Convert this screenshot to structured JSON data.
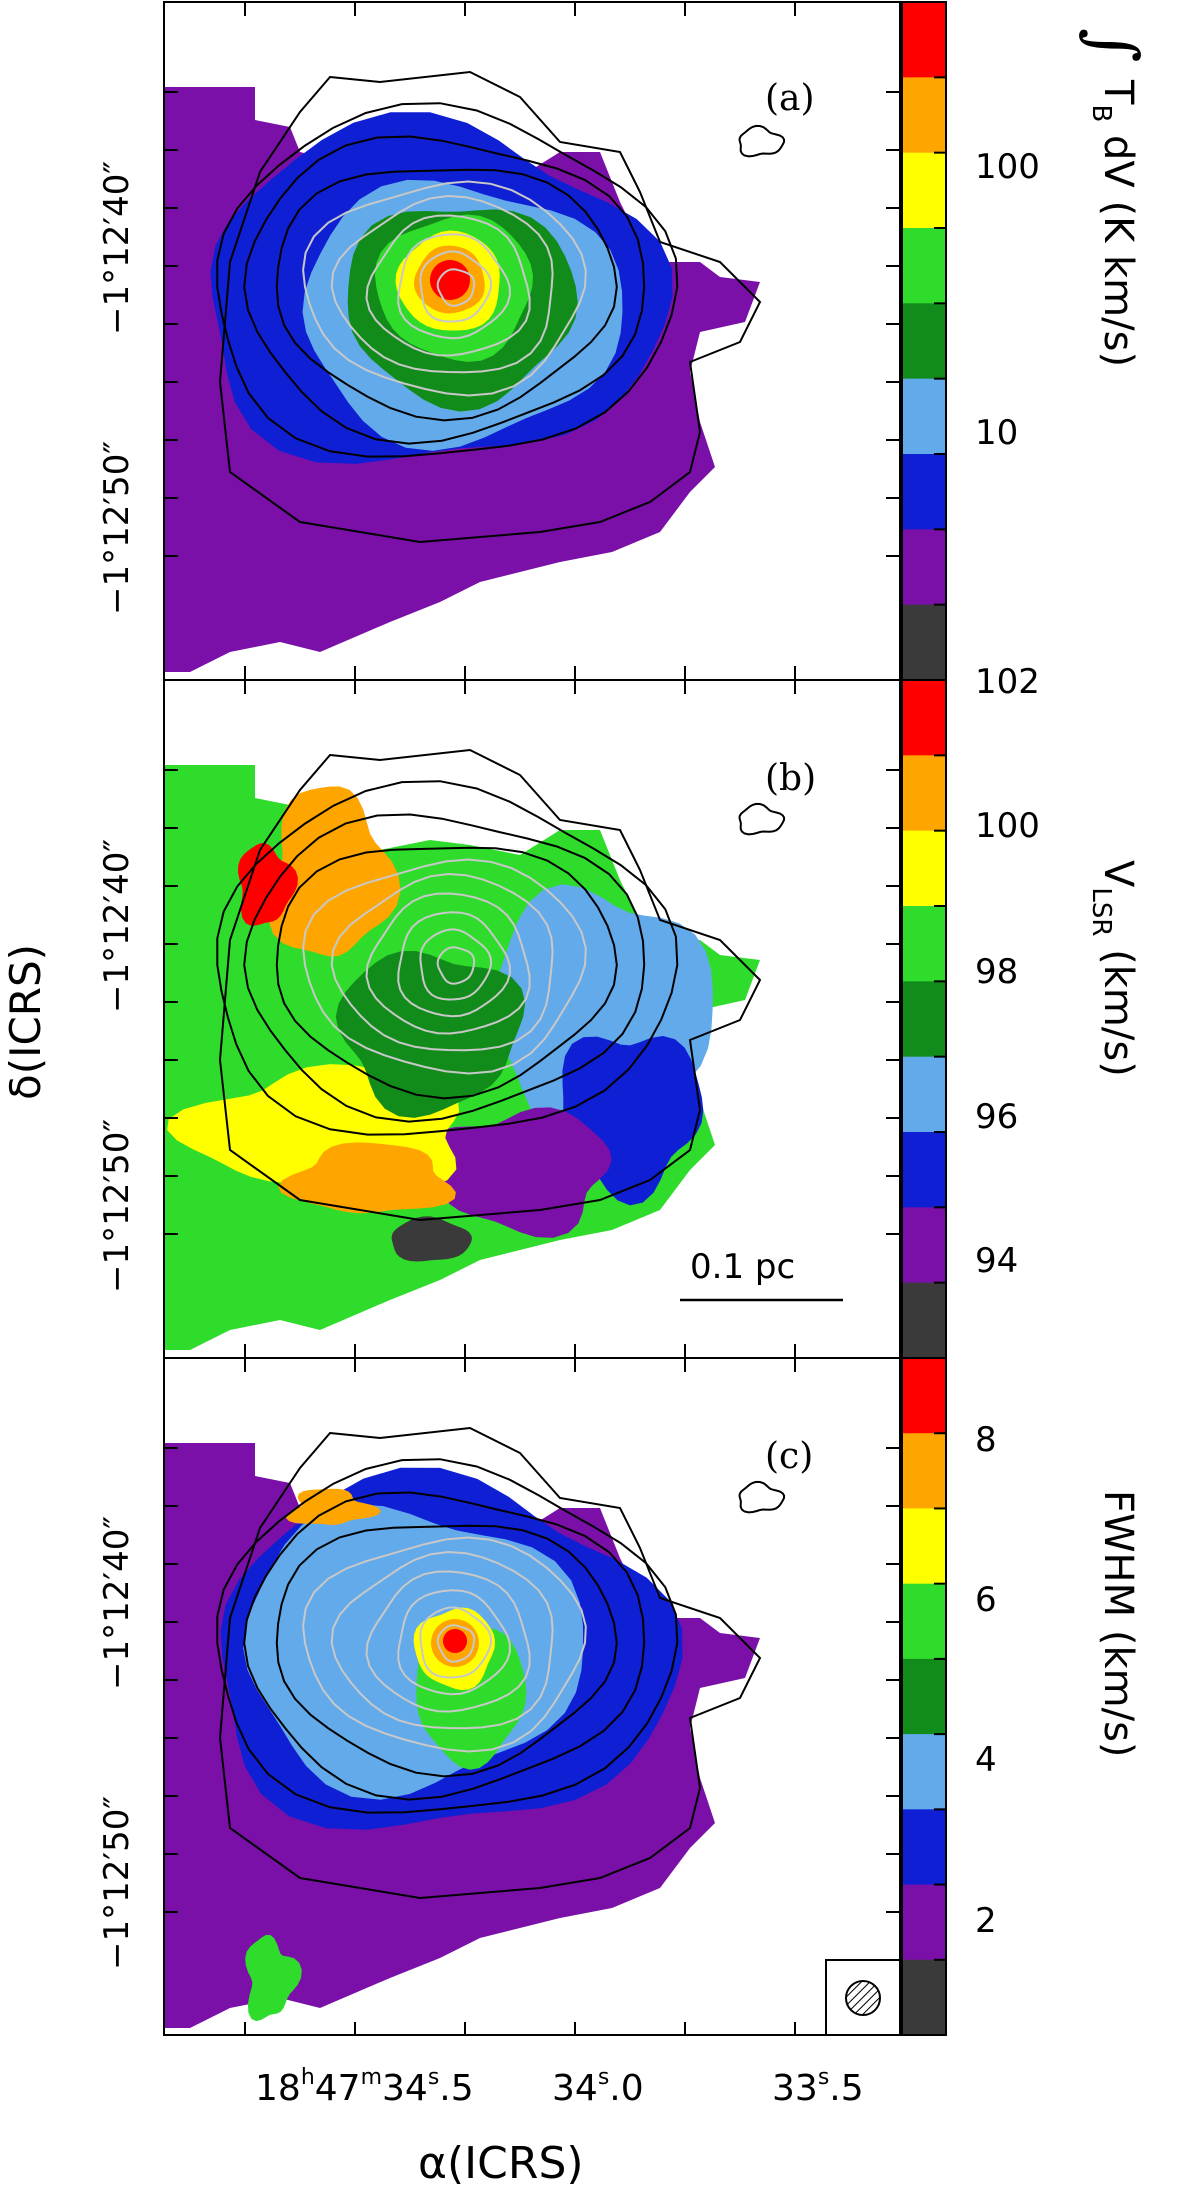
{
  "chart_data": [
    {
      "type": "heatmap",
      "panel_label": "(a)",
      "colorbar_label": "∫ T_B dV (K km/s)",
      "colorbar": {
        "scale": "log",
        "ticks": [
          {
            "value": 100,
            "label": "100"
          },
          {
            "value": 10,
            "label": "10"
          }
        ]
      },
      "ylabel": "δ(ICRS)",
      "y_ticks": [
        "−1°12′40″",
        "−1°12′50″"
      ],
      "contours": "grey/black contour overlay"
    },
    {
      "type": "heatmap",
      "panel_label": "(b)",
      "colorbar_label": "V_LSR (km/s)",
      "colorbar": {
        "scale": "linear",
        "ticks": [
          {
            "value": 102,
            "label": "102"
          },
          {
            "value": 100,
            "label": "100"
          },
          {
            "value": 98,
            "label": "98"
          },
          {
            "value": 96,
            "label": "96"
          },
          {
            "value": 94,
            "label": "94"
          }
        ]
      },
      "ylabel": "δ(ICRS)",
      "y_ticks": [
        "−1°12′40″",
        "−1°12′50″"
      ],
      "scale_bar": "0.1 pc"
    },
    {
      "type": "heatmap",
      "panel_label": "(c)",
      "colorbar_label": "FWHM (km/s)",
      "colorbar": {
        "scale": "linear",
        "ticks": [
          {
            "value": 8,
            "label": "8"
          },
          {
            "value": 6,
            "label": "6"
          },
          {
            "value": 4,
            "label": "4"
          },
          {
            "value": 2,
            "label": "2"
          }
        ]
      },
      "ylabel": "δ(ICRS)",
      "y_ticks": [
        "−1°12′40″",
        "−1°12′50″"
      ],
      "xlabel": "α(ICRS)",
      "x_ticks": [
        "18h47m34s.5",
        "34s.0",
        "33s.5"
      ],
      "beam": "hatched beam ellipse"
    }
  ],
  "labels": {
    "panel_a": "(a)",
    "panel_b": "(b)",
    "panel_c": "(c)",
    "y_axis": "δ(ICRS)",
    "x_axis": "α(ICRS)",
    "y_tick_top": "−1°12′40″",
    "y_tick_bottom": "−1°12′50″",
    "x_tick_1_h": "18",
    "x_tick_1_m": "47",
    "x_tick_1_s": "34",
    "x_tick_1_frac": ".5",
    "x_tick_2_s": "34",
    "x_tick_2_frac": ".0",
    "x_tick_3_s": "33",
    "x_tick_3_frac": ".5",
    "scale_bar": "0.1 pc",
    "cb_a_ticks": [
      "100",
      "10"
    ],
    "cb_b_ticks": [
      "102",
      "100",
      "98",
      "96",
      "94"
    ],
    "cb_c_ticks": [
      "8",
      "6",
      "4",
      "2"
    ],
    "cb_a_label": "T",
    "cb_a_sub": "B",
    "cb_a_rest": " dV (K km/s)",
    "cb_b_label": "V",
    "cb_b_sub": "LSR",
    "cb_b_rest": " (km/s)",
    "cb_c_label": "FWHM (km/s)",
    "integral": "∫"
  },
  "palette": [
    "#3a3a3a",
    "#7a10a8",
    "#0f1fd4",
    "#62aaea",
    "#118c1a",
    "#2fdc2c",
    "#ffff00",
    "#ffa500",
    "#ff0000"
  ],
  "colors": {
    "contour_inner": "#c8c8c8",
    "contour_outer": "#000000",
    "frame": "#000000"
  }
}
